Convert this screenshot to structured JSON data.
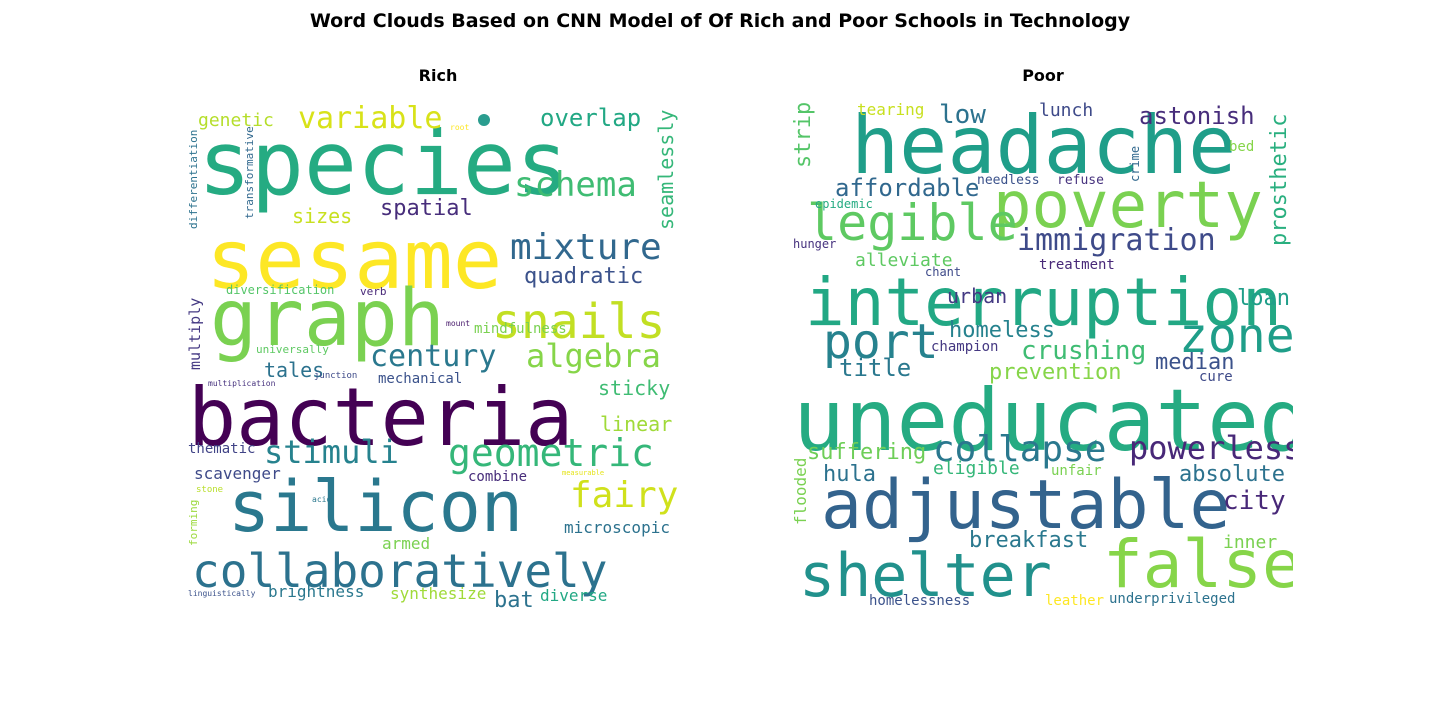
{
  "figure": {
    "title": "Word Clouds Based on CNN Model of Of Rich and Poor Schools in Technology"
  },
  "chart_data": [
    {
      "type": "wordcloud",
      "title": "Rich",
      "colormap": "viridis",
      "words": [
        {
          "text": "species",
          "color": "#25ab82"
        },
        {
          "text": "sesame",
          "color": "#fde725"
        },
        {
          "text": "graph",
          "color": "#7ad151"
        },
        {
          "text": "bacteria",
          "color": "#440154"
        },
        {
          "text": "silicon",
          "color": "#2a788e"
        },
        {
          "text": "collaboratively",
          "color": "#2c728e"
        },
        {
          "text": "variable",
          "color": "#d8e219"
        },
        {
          "text": "overlap",
          "color": "#22a884"
        },
        {
          "text": "schema",
          "color": "#3fbc73"
        },
        {
          "text": "mixture",
          "color": "#31688e"
        },
        {
          "text": "snails",
          "color": "#c2df23"
        },
        {
          "text": "algebra",
          "color": "#86d549"
        },
        {
          "text": "century",
          "color": "#2a788e"
        },
        {
          "text": "geometric",
          "color": "#35b779"
        },
        {
          "text": "fairy",
          "color": "#d0e11c"
        },
        {
          "text": "stimuli",
          "color": "#26828e"
        },
        {
          "text": "quadratic",
          "color": "#3b528b"
        },
        {
          "text": "spatial",
          "color": "#472d7b"
        },
        {
          "text": "sizes",
          "color": "#c8e020"
        },
        {
          "text": "genetic",
          "color": "#b5de2b"
        },
        {
          "text": "seamlessly",
          "color": "#35b779"
        },
        {
          "text": "sticky",
          "color": "#3fbc73"
        },
        {
          "text": "linear",
          "color": "#a0da39"
        },
        {
          "text": "tales",
          "color": "#2c728e"
        },
        {
          "text": "mechanical",
          "color": "#3b528b"
        },
        {
          "text": "mindfulness",
          "color": "#7ad151"
        },
        {
          "text": "diversification",
          "color": "#54c568"
        },
        {
          "text": "universally",
          "color": "#5ec962"
        },
        {
          "text": "multiply",
          "color": "#443983"
        },
        {
          "text": "differentiation",
          "color": "#2c728e"
        },
        {
          "text": "transformative",
          "color": "#31688e"
        },
        {
          "text": "verb",
          "color": "#482878"
        },
        {
          "text": "root",
          "color": "#fde725"
        },
        {
          "text": "mount",
          "color": "#481a6c"
        },
        {
          "text": "junction",
          "color": "#3e4a89"
        },
        {
          "text": "multiplication",
          "color": "#46327e"
        },
        {
          "text": "thematic",
          "color": "#414487"
        },
        {
          "text": "scavenger",
          "color": "#3e4a89"
        },
        {
          "text": "combine",
          "color": "#472c7a"
        },
        {
          "text": "measurable",
          "color": "#e5e419"
        },
        {
          "text": "stone",
          "color": "#b8de29"
        },
        {
          "text": "acid",
          "color": "#2a788e"
        },
        {
          "text": "forming",
          "color": "#9bd93c"
        },
        {
          "text": "microscopic",
          "color": "#2c728e"
        },
        {
          "text": "armed",
          "color": "#7ad151"
        },
        {
          "text": "brightness",
          "color": "#2a788e"
        },
        {
          "text": "synthesize",
          "color": "#a0da39"
        },
        {
          "text": "bat",
          "color": "#2c728e"
        },
        {
          "text": "diverse",
          "color": "#22a884"
        },
        {
          "text": "linguistically",
          "color": "#3b528b"
        }
      ]
    },
    {
      "type": "wordcloud",
      "title": "Poor",
      "colormap": "viridis",
      "words": [
        {
          "text": "headache",
          "color": "#1f9e89"
        },
        {
          "text": "poverty",
          "color": "#7ad151"
        },
        {
          "text": "legible",
          "color": "#5ec962"
        },
        {
          "text": "interruption",
          "color": "#22a884"
        },
        {
          "text": "uneducated",
          "color": "#25ab82"
        },
        {
          "text": "adjustable",
          "color": "#33638d"
        },
        {
          "text": "shelter",
          "color": "#21918c"
        },
        {
          "text": "false",
          "color": "#86d549"
        },
        {
          "text": "port",
          "color": "#26828e"
        },
        {
          "text": "zone",
          "color": "#1f9e89"
        },
        {
          "text": "collapse",
          "color": "#2a788e"
        },
        {
          "text": "immigration",
          "color": "#3e4a89"
        },
        {
          "text": "powerless",
          "color": "#482878"
        },
        {
          "text": "affordable",
          "color": "#31688e"
        },
        {
          "text": "crushing",
          "color": "#3fbc73"
        },
        {
          "text": "title",
          "color": "#2a788e"
        },
        {
          "text": "astonish",
          "color": "#472d7b"
        },
        {
          "text": "low",
          "color": "#2c728e"
        },
        {
          "text": "strip",
          "color": "#54c568"
        },
        {
          "text": "prosthetic",
          "color": "#29af7f"
        },
        {
          "text": "homeless",
          "color": "#26828e"
        },
        {
          "text": "prevention",
          "color": "#86d549"
        },
        {
          "text": "median",
          "color": "#3b528b"
        },
        {
          "text": "suffering",
          "color": "#6ece58"
        },
        {
          "text": "hula",
          "color": "#2c728e"
        },
        {
          "text": "eligible",
          "color": "#35b779"
        },
        {
          "text": "absolute",
          "color": "#2c728e"
        },
        {
          "text": "city",
          "color": "#482878"
        },
        {
          "text": "breakfast",
          "color": "#2a788e"
        },
        {
          "text": "inner",
          "color": "#7ad151"
        },
        {
          "text": "flooded",
          "color": "#7ad151"
        },
        {
          "text": "urban",
          "color": "#443983"
        },
        {
          "text": "loan",
          "color": "#1f9e89"
        },
        {
          "text": "alleviate",
          "color": "#5ec962"
        },
        {
          "text": "lunch",
          "color": "#3e4a89"
        },
        {
          "text": "tearing",
          "color": "#c8e020"
        },
        {
          "text": "bed",
          "color": "#86d549"
        },
        {
          "text": "crime",
          "color": "#31688e"
        },
        {
          "text": "needless",
          "color": "#3b528b"
        },
        {
          "text": "refuse",
          "color": "#46327e"
        },
        {
          "text": "epidemic",
          "color": "#25ab82"
        },
        {
          "text": "hunger",
          "color": "#46327e"
        },
        {
          "text": "chant",
          "color": "#3e4a89"
        },
        {
          "text": "treatment",
          "color": "#482878"
        },
        {
          "text": "champion",
          "color": "#453882"
        },
        {
          "text": "cure",
          "color": "#3e4a89"
        },
        {
          "text": "unfair",
          "color": "#7ad151"
        },
        {
          "text": "homelessness",
          "color": "#3b528b"
        },
        {
          "text": "leather",
          "color": "#fde725"
        },
        {
          "text": "underprivileged",
          "color": "#2c728e"
        }
      ]
    }
  ]
}
